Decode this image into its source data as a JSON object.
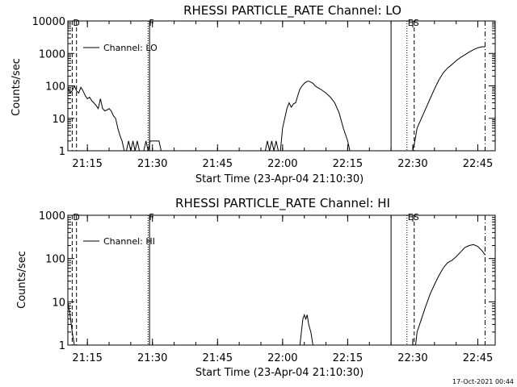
{
  "footer": {
    "timestamp": "17-Oct-2021 00:44"
  },
  "chart_data": [
    {
      "type": "line",
      "title": "RHESSI PARTICLE_RATE Channel: LO",
      "xlabel": "Start Time (23-Apr-04 21:10:30)",
      "ylabel": "Counts/sec",
      "yscale": "log",
      "xlim": [
        "21:10:30",
        "22:49:00"
      ],
      "ylim": [
        1,
        10000
      ],
      "xticks": [
        "21:15",
        "21:30",
        "21:45",
        "22:00",
        "22:15",
        "22:30",
        "22:45"
      ],
      "yticks": [
        "1",
        "10",
        "100",
        "1000",
        "10000"
      ],
      "legend": {
        "position": "top-left",
        "entries": [
          "Channel: LO"
        ]
      },
      "grid": false,
      "markers": [
        {
          "label": "D",
          "time": "21:11:30",
          "style": "dashed"
        },
        {
          "label": "",
          "time": "21:12:30",
          "style": "dashed"
        },
        {
          "label": "F",
          "time": "21:29:00",
          "style": "dotted"
        },
        {
          "label": "",
          "time": "21:29:20",
          "style": "solid"
        },
        {
          "label": "",
          "time": "22:25:00",
          "style": "solid"
        },
        {
          "label": "ES",
          "time": "22:28:40",
          "style": "dotted"
        },
        {
          "label": "",
          "time": "22:30:20",
          "style": "dashed"
        },
        {
          "label": "",
          "time": "22:46:40",
          "style": "dashdot"
        }
      ],
      "series": [
        {
          "name": "Channel: LO",
          "segments": [
            {
              "x": [
                "21:10:30",
                "21:11:00",
                "21:11:30",
                "21:12:00",
                "21:12:30",
                "21:13:00",
                "21:13:30",
                "21:14:00",
                "21:14:30",
                "21:15:00",
                "21:15:30",
                "21:16:00",
                "21:16:30",
                "21:17:00",
                "21:17:30",
                "21:18:00",
                "21:18:30",
                "21:19:00",
                "21:19:30",
                "21:20:00",
                "21:20:30",
                "21:21:00",
                "21:21:30",
                "21:22:00",
                "21:22:30",
                "21:23:00",
                "21:23:30",
                "21:24:00",
                "21:24:30",
                "21:25:00",
                "21:25:30",
                "21:26:00",
                "21:26:30",
                "21:27:00",
                "21:27:30",
                "21:28:00",
                "21:28:30",
                "21:29:00",
                "21:29:30",
                "21:30:00",
                "21:30:30",
                "21:31:00",
                "21:31:30",
                "21:32:00"
              ],
              "y": [
                90,
                60,
                70,
                100,
                70,
                60,
                90,
                70,
                50,
                40,
                45,
                35,
                30,
                25,
                20,
                40,
                20,
                17,
                18,
                20,
                17,
                12,
                10,
                5,
                3,
                2,
                1,
                1,
                2,
                1,
                2,
                1,
                2,
                1,
                1,
                1,
                2,
                1,
                2,
                2,
                2,
                2,
                2,
                1
              ]
            },
            {
              "x": [
                "21:56:00",
                "21:56:30",
                "21:57:00",
                "21:57:30",
                "21:58:00",
                "21:58:30",
                "21:59:00"
              ],
              "y": [
                1,
                2,
                1,
                2,
                1,
                2,
                1
              ]
            },
            {
              "x": [
                "21:59:30",
                "22:00:00",
                "22:00:30",
                "22:01:00",
                "22:01:30",
                "22:02:00",
                "22:02:30",
                "22:03:00",
                "22:03:30",
                "22:04:00",
                "22:04:30",
                "22:05:00",
                "22:05:30",
                "22:06:00",
                "22:06:30",
                "22:07:00",
                "22:07:30",
                "22:08:00",
                "22:09:00",
                "22:10:00",
                "22:11:00",
                "22:12:00",
                "22:13:00",
                "22:14:00",
                "22:15:00",
                "22:15:30"
              ],
              "y": [
                1,
                5,
                10,
                20,
                30,
                22,
                28,
                30,
                50,
                80,
                100,
                120,
                135,
                140,
                130,
                120,
                100,
                90,
                75,
                60,
                45,
                30,
                15,
                5,
                2,
                1
              ]
            },
            {
              "x": [
                "22:30:00",
                "22:30:30",
                "22:31:00",
                "22:32:00",
                "22:33:00",
                "22:34:00",
                "22:35:00",
                "22:36:00",
                "22:37:00",
                "22:38:00",
                "22:39:00",
                "22:40:00",
                "22:41:00",
                "22:42:00",
                "22:43:00",
                "22:44:00",
                "22:45:00",
                "22:46:00",
                "22:46:40"
              ],
              "y": [
                1,
                2,
                5,
                10,
                20,
                40,
                80,
                150,
                250,
                350,
                450,
                600,
                750,
                900,
                1100,
                1300,
                1500,
                1600,
                1600
              ]
            }
          ]
        }
      ]
    },
    {
      "type": "line",
      "title": "RHESSI PARTICLE_RATE Channel: HI",
      "xlabel": "Start Time (23-Apr-04 21:10:30)",
      "ylabel": "Counts/sec",
      "yscale": "log",
      "xlim": [
        "21:10:30",
        "22:49:00"
      ],
      "ylim": [
        1,
        1000
      ],
      "xticks": [
        "21:15",
        "21:30",
        "21:45",
        "22:00",
        "22:15",
        "22:30",
        "22:45"
      ],
      "yticks": [
        "1",
        "10",
        "100",
        "1000"
      ],
      "legend": {
        "position": "top-left",
        "entries": [
          "Channel: HI"
        ]
      },
      "grid": false,
      "markers": [
        {
          "label": "D",
          "time": "21:11:30",
          "style": "dashed"
        },
        {
          "label": "",
          "time": "21:12:30",
          "style": "dashed"
        },
        {
          "label": "F",
          "time": "21:29:00",
          "style": "dotted"
        },
        {
          "label": "",
          "time": "21:29:20",
          "style": "solid"
        },
        {
          "label": "",
          "time": "22:25:00",
          "style": "solid"
        },
        {
          "label": "ES",
          "time": "22:28:40",
          "style": "dotted"
        },
        {
          "label": "",
          "time": "22:30:20",
          "style": "dashed"
        },
        {
          "label": "",
          "time": "22:46:40",
          "style": "dashdot"
        }
      ],
      "series": [
        {
          "name": "Channel: HI",
          "segments": [
            {
              "x": [
                "21:10:30",
                "21:11:00",
                "21:11:30",
                "21:12:00"
              ],
              "y": [
                10,
                5,
                2,
                1
              ]
            },
            {
              "x": [
                "22:04:00",
                "22:04:20",
                "22:04:40",
                "22:05:00",
                "22:05:20",
                "22:05:40",
                "22:06:00",
                "22:06:30",
                "22:07:00"
              ],
              "y": [
                1,
                2,
                4,
                5,
                4,
                5,
                3,
                2,
                1
              ]
            },
            {
              "x": [
                "22:30:40",
                "22:31:00",
                "22:32:00",
                "22:33:00",
                "22:34:00",
                "22:35:00",
                "22:36:00",
                "22:37:00",
                "22:38:00",
                "22:39:00",
                "22:40:00",
                "22:41:00",
                "22:42:00",
                "22:43:00",
                "22:44:00",
                "22:45:00",
                "22:46:00",
                "22:46:40"
              ],
              "y": [
                1,
                2,
                4,
                8,
                15,
                25,
                40,
                60,
                80,
                90,
                110,
                140,
                180,
                200,
                210,
                190,
                150,
                120
              ]
            }
          ]
        }
      ]
    }
  ]
}
